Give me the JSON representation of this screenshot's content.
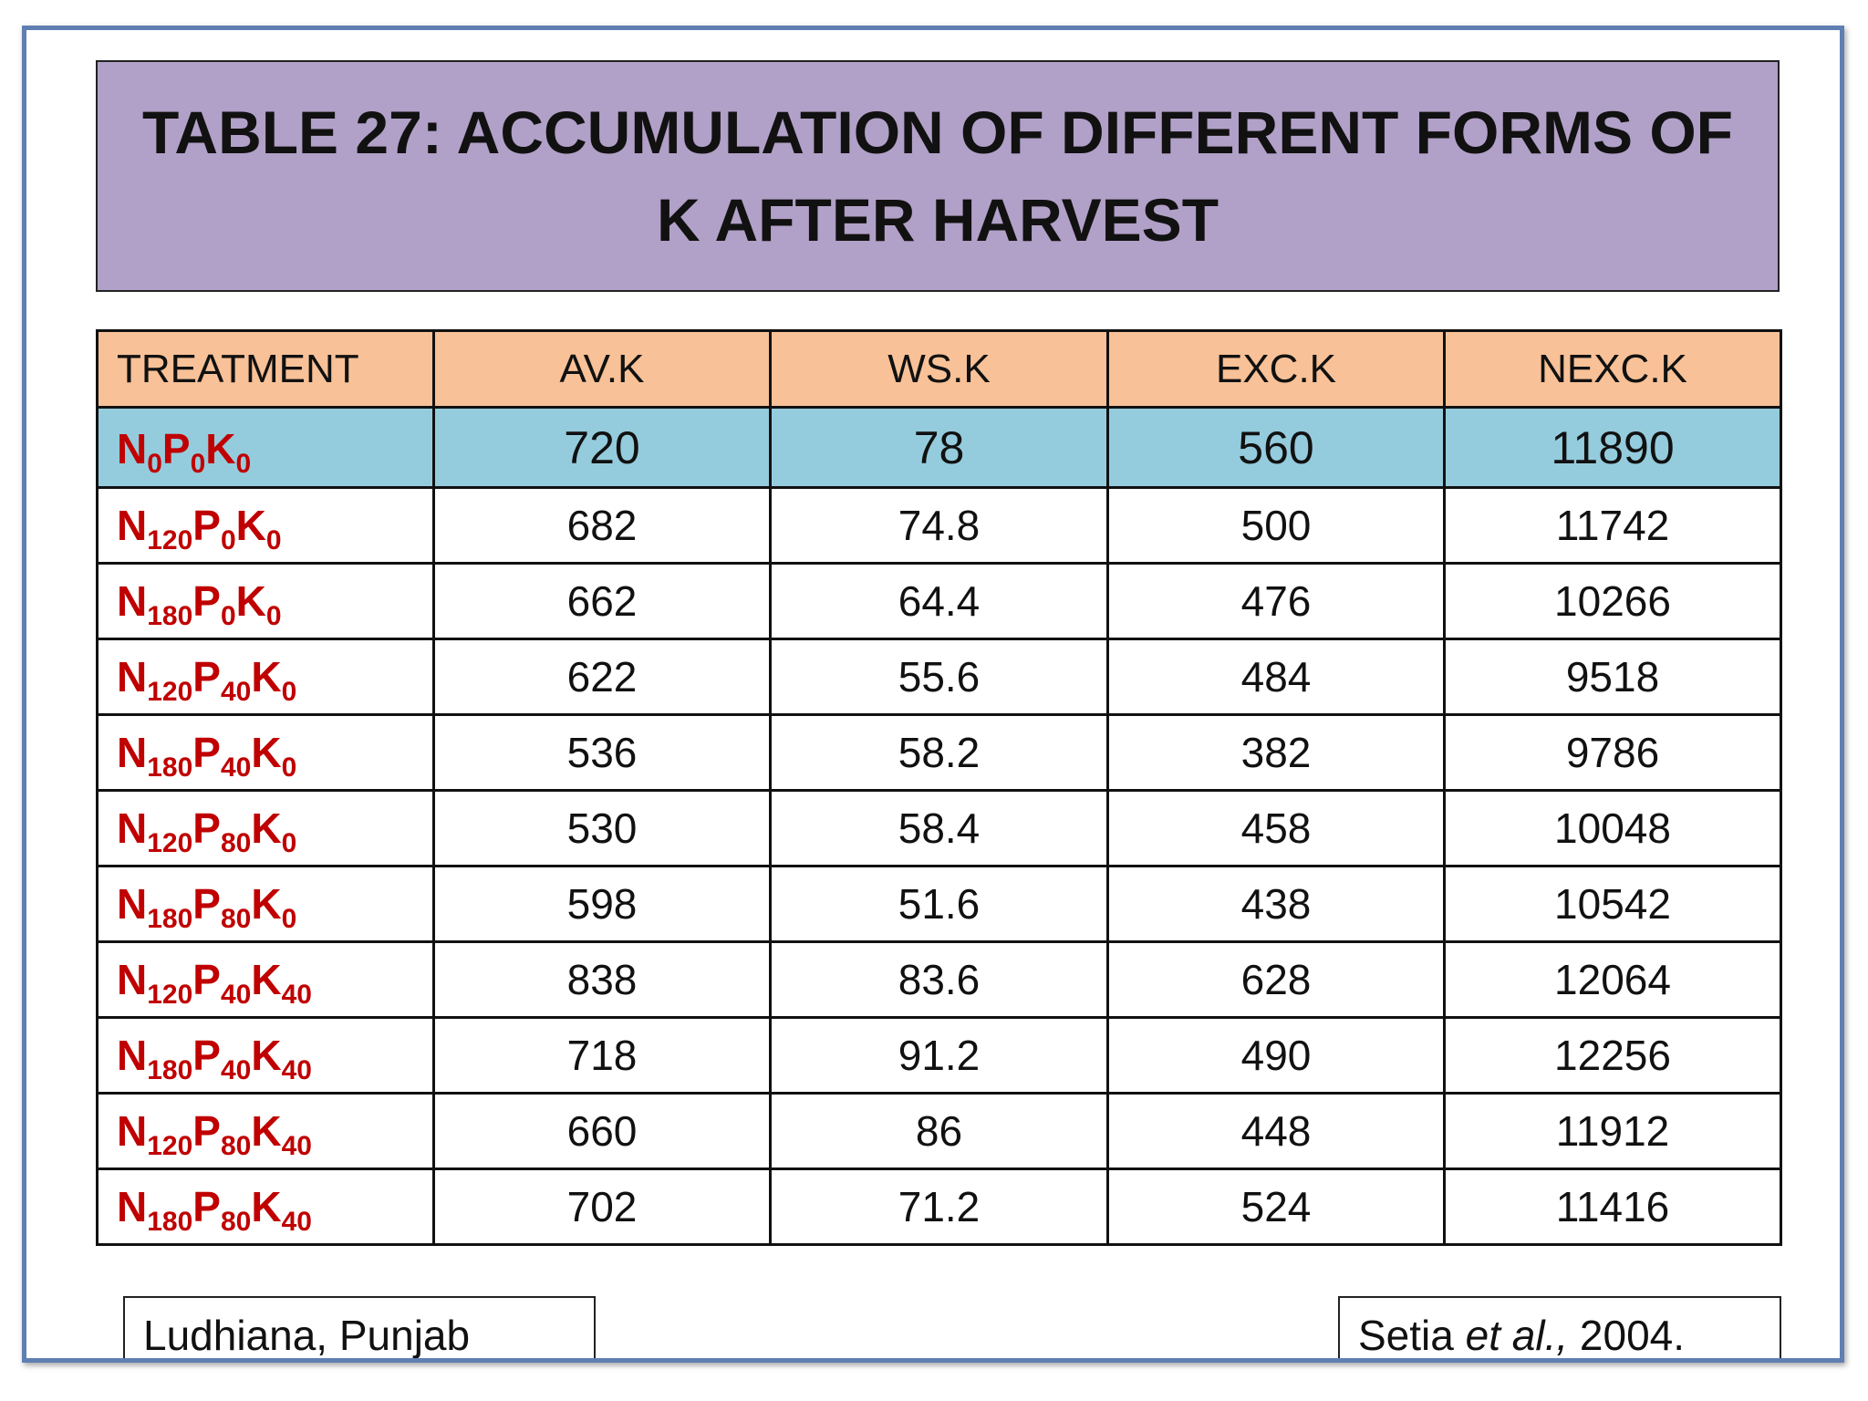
{
  "title": {
    "line1": "TABLE 27: ACCUMULATION OF DIFFERENT FORMS OF",
    "line2": "K AFTER HARVEST"
  },
  "table": {
    "headers": [
      "TREATMENT",
      "AV.K",
      "WS.K",
      "EXC.K",
      "NEXC.K"
    ],
    "rows": [
      {
        "n": "0",
        "p": "0",
        "k": "0",
        "av": "720",
        "ws": "78",
        "exc": "560",
        "nexc": "11890",
        "highlight": true
      },
      {
        "n": "120",
        "p": "0",
        "k": "0",
        "av": "682",
        "ws": "74.8",
        "exc": "500",
        "nexc": "11742"
      },
      {
        "n": "180",
        "p": "0",
        "k": "0",
        "av": "662",
        "ws": "64.4",
        "exc": "476",
        "nexc": "10266"
      },
      {
        "n": "120",
        "p": "40",
        "k": "0",
        "av": "622",
        "ws": "55.6",
        "exc": "484",
        "nexc": "9518"
      },
      {
        "n": "180",
        "p": "40",
        "k": "0",
        "av": "536",
        "ws": "58.2",
        "exc": "382",
        "nexc": "9786"
      },
      {
        "n": "120",
        "p": "80",
        "k": "0",
        "av": "530",
        "ws": "58.4",
        "exc": "458",
        "nexc": "10048"
      },
      {
        "n": "180",
        "p": "80",
        "k": "0",
        "av": "598",
        "ws": "51.6",
        "exc": "438",
        "nexc": "10542"
      },
      {
        "n": "120",
        "p": "40",
        "k": "40",
        "av": "838",
        "ws": "83.6",
        "exc": "628",
        "nexc": "12064"
      },
      {
        "n": "180",
        "p": "40",
        "k": "40",
        "av": "718",
        "ws": "91.2",
        "exc": "490",
        "nexc": "12256"
      },
      {
        "n": "120",
        "p": "80",
        "k": "40",
        "av": "660",
        "ws": "86",
        "exc": "448",
        "nexc": "11912"
      },
      {
        "n": "180",
        "p": "80",
        "k": "40",
        "av": "702",
        "ws": "71.2",
        "exc": "524",
        "nexc": "11416"
      }
    ]
  },
  "treatment_letters": {
    "n": "N",
    "p": "P",
    "k": "K"
  },
  "footer": {
    "location": "Ludhiana, Punjab",
    "citation_author": "Setia ",
    "citation_etal": "et al.,",
    "citation_year": " 2004."
  },
  "colors": {
    "title_bg": "#b1a0c7",
    "header_bg": "#f8c197",
    "highlight_row_bg": "#94ccdd",
    "treatment_text": "#c00000",
    "frame_border": "#5f7fb3"
  }
}
